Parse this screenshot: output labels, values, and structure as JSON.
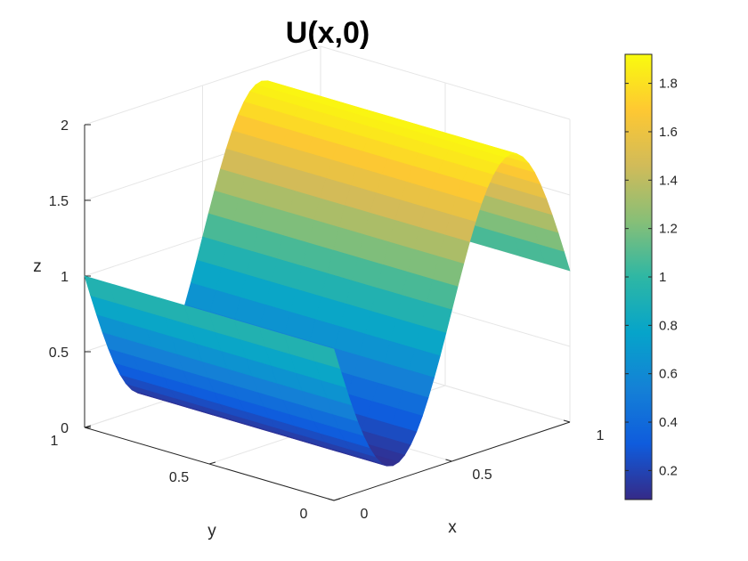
{
  "chart_data": {
    "type": "surface",
    "title": "U(x,0)",
    "xlabel": "x",
    "ylabel": "y",
    "zlabel": "z",
    "xlim": [
      0,
      1
    ],
    "ylim": [
      0,
      1
    ],
    "zlim": [
      0,
      2
    ],
    "x_ticks": [
      "0",
      "0.5",
      "1"
    ],
    "y_ticks": [
      "0",
      "0.5",
      "1"
    ],
    "z_ticks": [
      "0",
      "0.5",
      "1",
      "1.5",
      "2"
    ],
    "grid": true,
    "colormap": "parula",
    "colorbar": {
      "range": [
        0.08,
        1.92
      ],
      "ticks": [
        "0.2",
        "0.4",
        "0.6",
        "0.8",
        "1",
        "1.2",
        "1.4",
        "1.6",
        "1.8"
      ]
    },
    "surface_function": "z = 1 - 0.9*sin(2*pi*x) along y-direction wave; shown as a sine sheet over the unit square",
    "x": [
      0,
      0.1,
      0.2,
      0.3,
      0.4,
      0.5,
      0.6,
      0.7,
      0.8,
      0.9,
      1
    ],
    "z": [
      1.0,
      0.47,
      0.14,
      0.14,
      0.47,
      1.0,
      1.53,
      1.86,
      1.86,
      1.53,
      1.0
    ]
  },
  "colors": {
    "grid": "#e6e6e6",
    "axis": "#262626",
    "parula": [
      "#352a87",
      "#0f5cdd",
      "#1481d6",
      "#06a4ca",
      "#2eb7a4",
      "#87bf77",
      "#d1bb59",
      "#fec832",
      "#f9fb0e"
    ]
  }
}
